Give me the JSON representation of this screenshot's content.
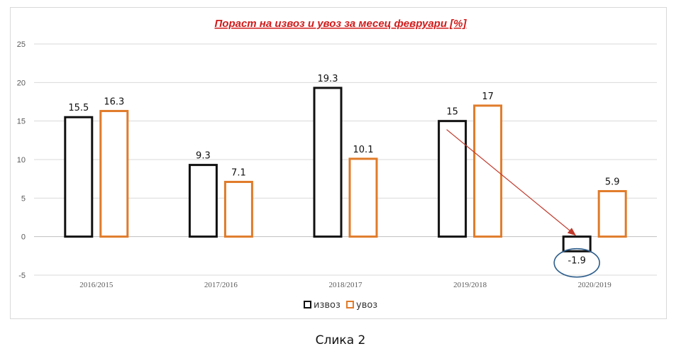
{
  "caption": "Слика 2",
  "colors": {
    "izvoz": "#111111",
    "uvoz": "#e07b2a",
    "title": "#d11b1b",
    "arrow": "#c0392b",
    "circle": "#2e5e8c",
    "grid": "#d9d9d9",
    "axis_text": "#595959"
  },
  "chart_data": {
    "type": "bar",
    "title": "Пораст на извоз и увоз за месец февруари [%]",
    "xlabel": "",
    "ylabel": "",
    "categories": [
      "2016/2015",
      "2017/2016",
      "2018/2017",
      "2019/2018",
      "2020/2019"
    ],
    "series": [
      {
        "name": "извоз",
        "values": [
          15.5,
          9.3,
          19.3,
          15,
          -1.9
        ],
        "labels": [
          "15.5",
          "9.3",
          "19.3",
          "15",
          "-1.9"
        ]
      },
      {
        "name": "увоз",
        "values": [
          16.3,
          7.1,
          10.1,
          17,
          5.9
        ],
        "labels": [
          "16.3",
          "7.1",
          "10.1",
          "17",
          "5.9"
        ]
      }
    ],
    "ylim": [
      -5,
      25
    ],
    "yticks": [
      "-5",
      "0",
      "5",
      "10",
      "15",
      "20",
      "25"
    ],
    "grid": true,
    "legend": "bottom",
    "annotations": [
      {
        "type": "arrow",
        "from": {
          "category": "2019/2018",
          "series": "извоз"
        },
        "to": {
          "category": "2020/2019",
          "series": "извоз"
        }
      },
      {
        "type": "circle",
        "target": {
          "category": "2020/2019",
          "series": "извоз"
        }
      }
    ]
  }
}
